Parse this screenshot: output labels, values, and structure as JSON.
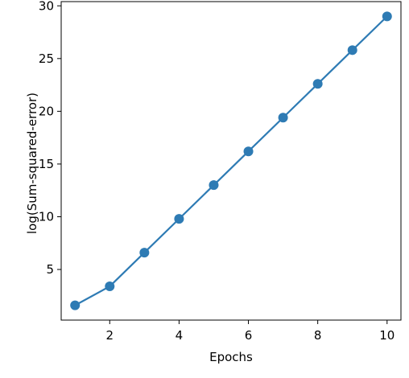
{
  "chart_data": {
    "type": "line",
    "title": "",
    "xlabel": "Epochs",
    "ylabel": "log(Sum-squared-error)",
    "x": [
      1,
      2,
      3,
      4,
      5,
      6,
      7,
      8,
      9,
      10
    ],
    "series": [
      {
        "name": "log(Sum-squared-error)",
        "color": "#2e7bb4",
        "values": [
          1.6,
          3.4,
          6.6,
          9.8,
          13.0,
          16.2,
          19.4,
          22.6,
          25.8,
          29.0
        ]
      }
    ],
    "xlim": [
      0.6,
      10.4
    ],
    "ylim": [
      0.2,
      30.4
    ],
    "x_ticks": [
      2,
      4,
      6,
      8,
      10
    ],
    "y_ticks": [
      5,
      10,
      15,
      20,
      25,
      30
    ],
    "grid": false,
    "legend": false
  }
}
